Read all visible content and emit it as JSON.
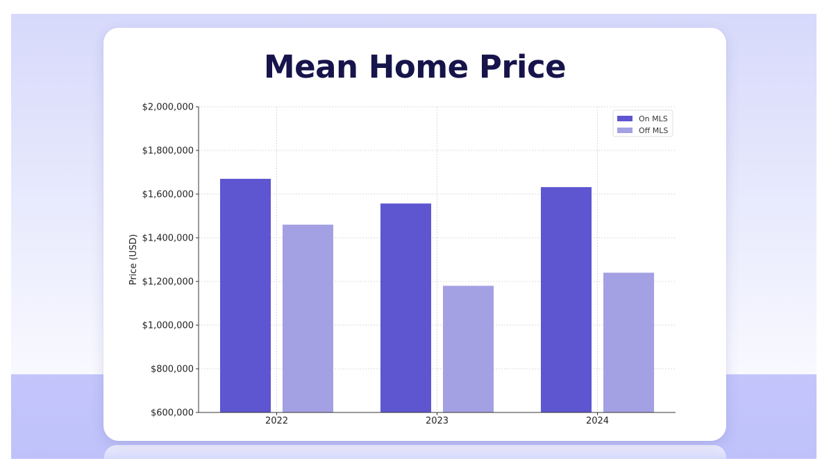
{
  "chart_data": {
    "type": "bar",
    "title": "Mean Home Price",
    "xlabel": "",
    "ylabel": "Price (USD)",
    "categories": [
      "2022",
      "2023",
      "2024"
    ],
    "series": [
      {
        "name": "On MLS",
        "values": [
          1670000,
          1557000,
          1632000
        ],
        "color": "#5e55d0"
      },
      {
        "name": "Off MLS",
        "values": [
          1460000,
          1180000,
          1240000
        ],
        "color": "#a3a0e3"
      }
    ],
    "ylim": [
      600000,
      2000000
    ],
    "yticks": [
      600000,
      800000,
      1000000,
      1200000,
      1400000,
      1600000,
      1800000,
      2000000
    ],
    "ytick_labels": [
      "$600,000",
      "$800,000",
      "$1,000,000",
      "$1,200,000",
      "$1,400,000",
      "$1,600,000",
      "$1,800,000",
      "$2,000,000"
    ],
    "grid": true,
    "legend_position": "top-right"
  },
  "colors": {
    "title": "#16144a",
    "background_top": "#d7d9fb",
    "background_bottom": "#bfc2fa"
  }
}
